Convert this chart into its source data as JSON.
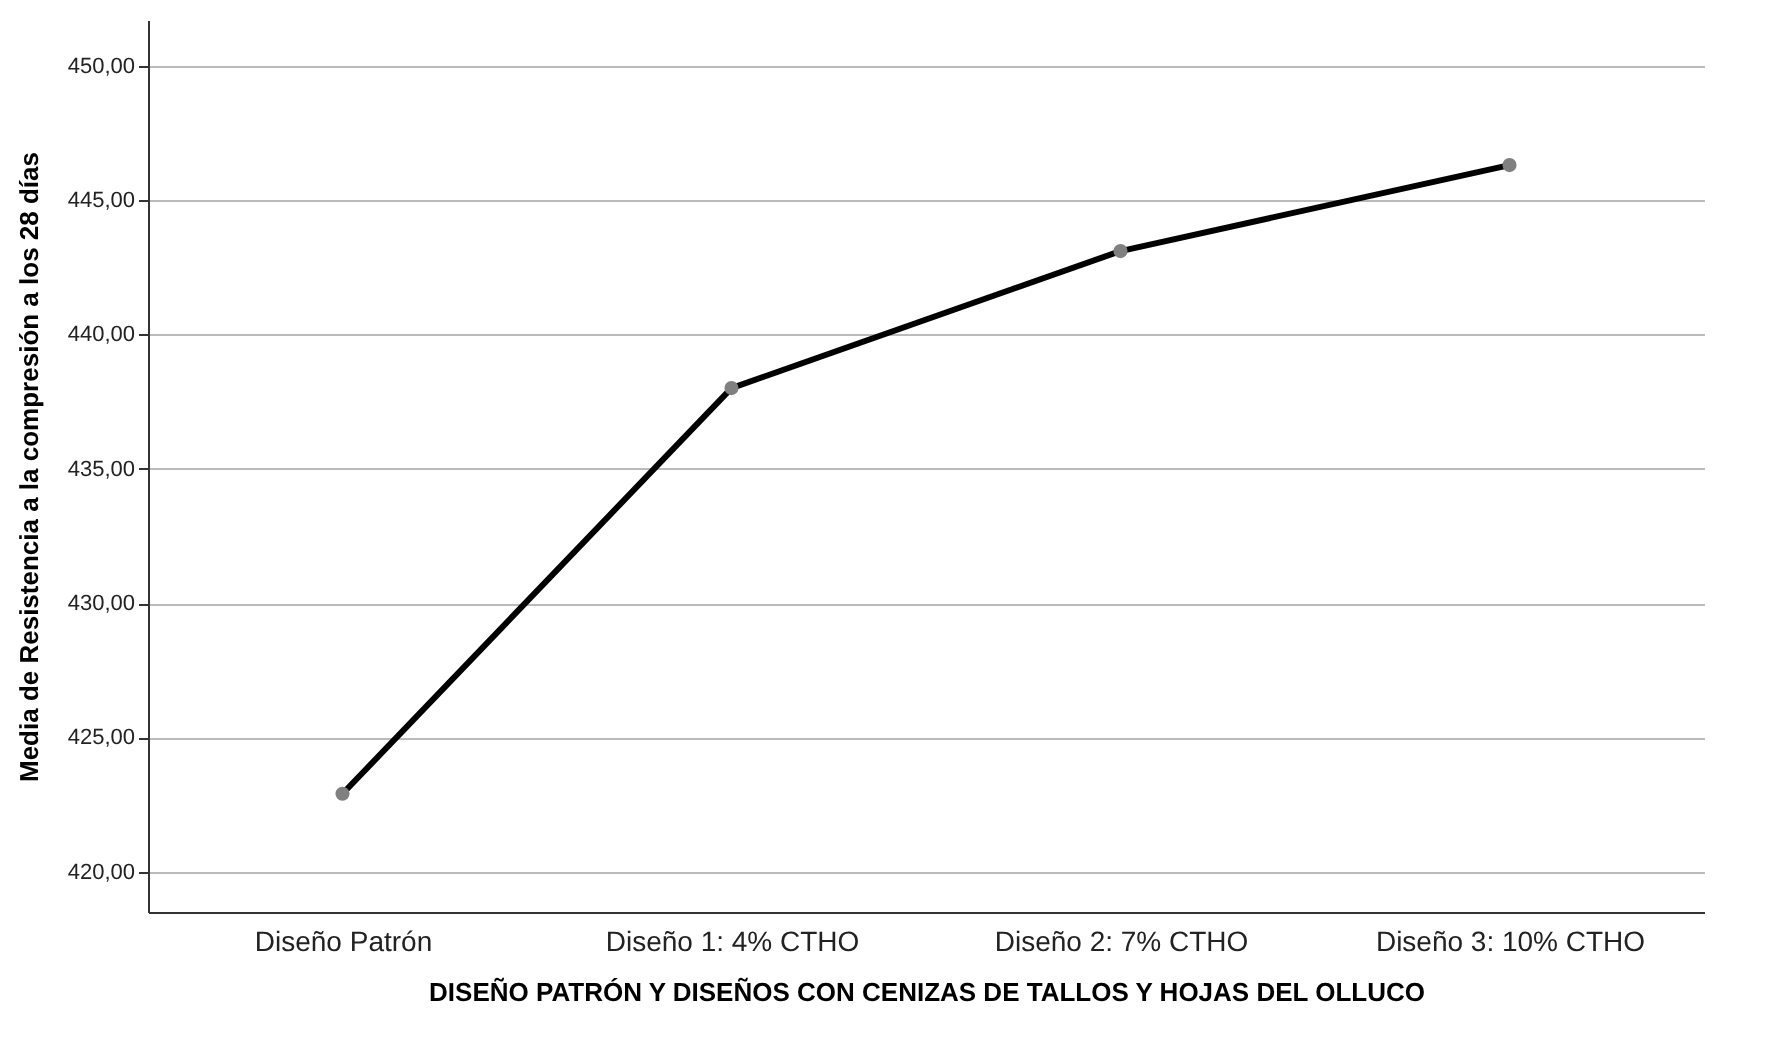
{
  "chart_data": {
    "type": "line",
    "xlabel": "DISEÑO PATRÓN Y DISEÑOS CON CENIZAS DE TALLOS Y HOJAS DEL OLLUCO",
    "ylabel": "Media de Resistencia a la compresión a los 28 días",
    "categories": [
      "Diseño Patrón",
      "Diseño 1: 4% CTHO",
      "Diseño 2: 7% CTHO",
      "Diseño 3: 10% CTHO"
    ],
    "series": [
      {
        "color": "#000000",
        "values": [
          422.9,
          438.0,
          443.1,
          446.3
        ]
      }
    ],
    "ylim": [
      418.5,
      451.7
    ],
    "yticks": [
      {
        "value": 420,
        "label": "420,00"
      },
      {
        "value": 425,
        "label": "425,00"
      },
      {
        "value": 430,
        "label": "430,00"
      },
      {
        "value": 435,
        "label": "435,00"
      },
      {
        "value": 440,
        "label": "440,00"
      },
      {
        "value": 445,
        "label": "445,00"
      },
      {
        "value": 450,
        "label": "450,00"
      }
    ],
    "grid": "y",
    "marker": "circle",
    "line_style": "solid",
    "legend": false
  }
}
